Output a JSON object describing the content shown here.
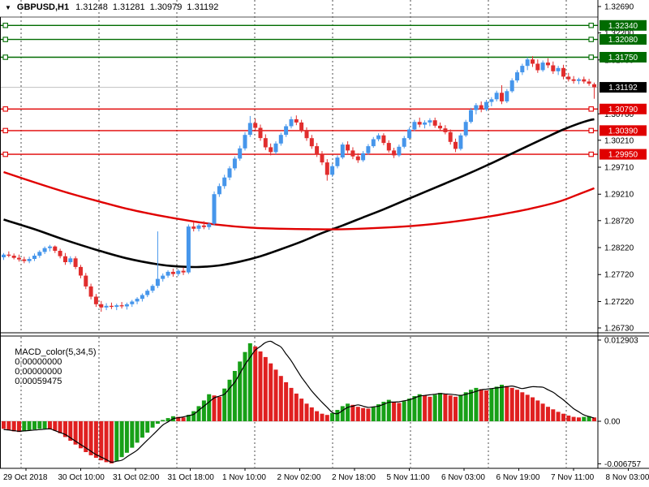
{
  "title": {
    "symbol": "GBPUSD,H1",
    "open": "1.31248",
    "high": "1.31281",
    "low": "1.30979",
    "close": "1.31192"
  },
  "colors": {
    "bull_candle": "#4696EB",
    "bear_candle": "#E12D2D",
    "ma_black": "#000000",
    "ma_red": "#E00000",
    "level_resistance": "#006B00",
    "level_support": "#E00000",
    "current_line": "#C8C8C8",
    "current_badge_bg": "#000000",
    "hist_up": "#17A017",
    "hist_down": "#E02020",
    "signal_line": "#000000",
    "grid": "#4d4d4d",
    "axis_text": "#000000"
  },
  "chart_data": {
    "type": "candlestick",
    "symbol": "GBPUSD",
    "timeframe": "H1",
    "x_labels": [
      "29 Oct 2018",
      "30 Oct 10:00",
      "31 Oct 02:00",
      "31 Oct 18:00",
      "1 Nov 10:00",
      "2 Nov 02:00",
      "2 Nov 18:00",
      "5 Nov 11:00",
      "6 Nov 03:00",
      "6 Nov 19:00",
      "7 Nov 11:00",
      "8 Nov 03:00"
    ],
    "y_axis": {
      "ticks": [
        "1.32690",
        "1.32200",
        "1.31700",
        "1.30700",
        "1.30210",
        "1.29710",
        "1.29210",
        "1.28720",
        "1.28220",
        "1.27720",
        "1.27220",
        "1.26730"
      ],
      "visible_range": [
        1.2664,
        1.32811
      ]
    },
    "levels": [
      {
        "price": 1.3234,
        "label": "1.32340",
        "type": "resistance"
      },
      {
        "price": 1.3208,
        "label": "1.32080",
        "type": "resistance"
      },
      {
        "price": 1.3175,
        "label": "1.31750",
        "type": "resistance"
      },
      {
        "price": 1.3079,
        "label": "1.30790",
        "type": "support"
      },
      {
        "price": 1.3039,
        "label": "1.30390",
        "type": "support"
      },
      {
        "price": 1.2995,
        "label": "1.29950",
        "type": "support"
      }
    ],
    "current_price": {
      "value": 1.31192,
      "label": "1.31192"
    },
    "candles": [
      [
        1.2804,
        1.2812,
        1.2799,
        1.2809
      ],
      [
        1.2809,
        1.2815,
        1.2804,
        1.2807
      ],
      [
        1.2807,
        1.2811,
        1.28,
        1.2803
      ],
      [
        1.2803,
        1.2809,
        1.2796,
        1.28
      ],
      [
        1.28,
        1.2805,
        1.2793,
        1.2797
      ],
      [
        1.2797,
        1.2805,
        1.2793,
        1.2801
      ],
      [
        1.2801,
        1.2811,
        1.2797,
        1.2807
      ],
      [
        1.2807,
        1.2817,
        1.2803,
        1.2814
      ],
      [
        1.2814,
        1.2824,
        1.281,
        1.2821
      ],
      [
        1.2821,
        1.2827,
        1.2815,
        1.2824
      ],
      [
        1.2824,
        1.2826,
        1.2812,
        1.2816
      ],
      [
        1.2816,
        1.282,
        1.2802,
        1.2806
      ],
      [
        1.2806,
        1.2812,
        1.279,
        1.2795
      ],
      [
        1.2795,
        1.2806,
        1.2791,
        1.2802
      ],
      [
        1.2802,
        1.2806,
        1.2782,
        1.2786
      ],
      [
        1.2786,
        1.279,
        1.2765,
        1.277
      ],
      [
        1.277,
        1.2775,
        1.2745,
        1.275
      ],
      [
        1.275,
        1.2755,
        1.2726,
        1.2731
      ],
      [
        1.2731,
        1.2736,
        1.2712,
        1.2717
      ],
      [
        1.2717,
        1.2723,
        1.2703,
        1.2711
      ],
      [
        1.2711,
        1.2719,
        1.2706,
        1.2714
      ],
      [
        1.2714,
        1.272,
        1.2708,
        1.2712
      ],
      [
        1.2712,
        1.2718,
        1.2706,
        1.2715
      ],
      [
        1.2715,
        1.2721,
        1.2709,
        1.2713
      ],
      [
        1.2713,
        1.272,
        1.2707,
        1.2717
      ],
      [
        1.2717,
        1.2725,
        1.2712,
        1.2722
      ],
      [
        1.2722,
        1.273,
        1.2717,
        1.2727
      ],
      [
        1.2727,
        1.2737,
        1.2722,
        1.2734
      ],
      [
        1.2734,
        1.2745,
        1.273,
        1.2742
      ],
      [
        1.2742,
        1.2754,
        1.2738,
        1.2751
      ],
      [
        1.2751,
        1.2852,
        1.2747,
        1.2764
      ],
      [
        1.2764,
        1.2774,
        1.2759,
        1.277
      ],
      [
        1.277,
        1.278,
        1.2766,
        1.2777
      ],
      [
        1.2777,
        1.2783,
        1.2768,
        1.2773
      ],
      [
        1.2773,
        1.2782,
        1.2769,
        1.2779
      ],
      [
        1.2779,
        1.2785,
        1.2771,
        1.2776
      ],
      [
        1.2776,
        1.2865,
        1.2773,
        1.2861
      ],
      [
        1.2861,
        1.287,
        1.2852,
        1.2857
      ],
      [
        1.2857,
        1.2866,
        1.2852,
        1.2863
      ],
      [
        1.2863,
        1.2871,
        1.2856,
        1.286
      ],
      [
        1.286,
        1.2869,
        1.2855,
        1.2866
      ],
      [
        1.2866,
        1.2926,
        1.2863,
        1.2921
      ],
      [
        1.2921,
        1.2941,
        1.2916,
        1.2936
      ],
      [
        1.2936,
        1.2957,
        1.2931,
        1.2952
      ],
      [
        1.2952,
        1.2973,
        1.2947,
        1.2969
      ],
      [
        1.2969,
        1.2991,
        1.2965,
        1.2987
      ],
      [
        1.2987,
        1.3011,
        1.2983,
        1.3006
      ],
      [
        1.3006,
        1.3036,
        1.3002,
        1.3031
      ],
      [
        1.3031,
        1.3066,
        1.3027,
        1.3053
      ],
      [
        1.3053,
        1.3061,
        1.3039,
        1.3044
      ],
      [
        1.3044,
        1.305,
        1.302,
        1.3025
      ],
      [
        1.3025,
        1.3032,
        1.3003,
        1.3008
      ],
      [
        1.3008,
        1.3015,
        1.2993,
        1.2999
      ],
      [
        1.2999,
        1.3019,
        1.2995,
        1.3015
      ],
      [
        1.3015,
        1.3035,
        1.3011,
        1.3031
      ],
      [
        1.3031,
        1.3051,
        1.3027,
        1.3047
      ],
      [
        1.3047,
        1.3065,
        1.3043,
        1.306
      ],
      [
        1.306,
        1.3067,
        1.3049,
        1.3054
      ],
      [
        1.3054,
        1.3059,
        1.3035,
        1.304
      ],
      [
        1.304,
        1.3045,
        1.302,
        1.3025
      ],
      [
        1.3025,
        1.3031,
        1.3005,
        1.301
      ],
      [
        1.301,
        1.3016,
        1.299,
        1.2995
      ],
      [
        1.2995,
        1.3001,
        1.2975,
        1.298
      ],
      [
        1.298,
        1.2986,
        1.2946,
        1.2957
      ],
      [
        1.2957,
        1.2977,
        1.2953,
        1.2973
      ],
      [
        1.2973,
        1.2993,
        1.2969,
        1.2989
      ],
      [
        1.2989,
        1.3017,
        1.2986,
        1.3013
      ],
      [
        1.3013,
        1.3019,
        1.2997,
        1.3002
      ],
      [
        1.3002,
        1.3008,
        1.2986,
        1.2991
      ],
      [
        1.2991,
        1.2997,
        1.2979,
        1.2984
      ],
      [
        1.2984,
        1.3001,
        1.2981,
        1.2997
      ],
      [
        1.2997,
        1.3014,
        1.2994,
        1.301
      ],
      [
        1.301,
        1.3027,
        1.3007,
        1.3023
      ],
      [
        1.3023,
        1.3034,
        1.3019,
        1.303
      ],
      [
        1.303,
        1.3034,
        1.3012,
        1.3016
      ],
      [
        1.3016,
        1.3021,
        1.2998,
        1.3002
      ],
      [
        1.3002,
        1.3007,
        1.2988,
        1.2993
      ],
      [
        1.2993,
        1.3013,
        1.299,
        1.3009
      ],
      [
        1.3009,
        1.3029,
        1.3006,
        1.3025
      ],
      [
        1.3025,
        1.3045,
        1.3022,
        1.3041
      ],
      [
        1.3041,
        1.3059,
        1.3038,
        1.3055
      ],
      [
        1.3055,
        1.3063,
        1.3045,
        1.305
      ],
      [
        1.305,
        1.3058,
        1.3043,
        1.3054
      ],
      [
        1.3054,
        1.3062,
        1.3047,
        1.3058
      ],
      [
        1.3058,
        1.3063,
        1.3044,
        1.3048
      ],
      [
        1.3048,
        1.3054,
        1.3039,
        1.3043
      ],
      [
        1.3043,
        1.3049,
        1.3032,
        1.3036
      ],
      [
        1.3036,
        1.3041,
        1.3013,
        1.3018
      ],
      [
        1.3018,
        1.3024,
        1.2999,
        1.3005
      ],
      [
        1.3005,
        1.3034,
        1.3002,
        1.303
      ],
      [
        1.303,
        1.3059,
        1.3027,
        1.3055
      ],
      [
        1.3055,
        1.3081,
        1.3052,
        1.3077
      ],
      [
        1.3077,
        1.309,
        1.3069,
        1.3086
      ],
      [
        1.3086,
        1.3093,
        1.3073,
        1.3078
      ],
      [
        1.3078,
        1.3096,
        1.3075,
        1.3092
      ],
      [
        1.3092,
        1.3101,
        1.3084,
        1.3097
      ],
      [
        1.3097,
        1.3113,
        1.3093,
        1.3109
      ],
      [
        1.3109,
        1.3123,
        1.3088,
        1.3093
      ],
      [
        1.3093,
        1.3116,
        1.309,
        1.3112
      ],
      [
        1.3112,
        1.3136,
        1.3109,
        1.3132
      ],
      [
        1.3132,
        1.3151,
        1.3128,
        1.3147
      ],
      [
        1.3147,
        1.3163,
        1.3142,
        1.3159
      ],
      [
        1.3159,
        1.3175,
        1.3151,
        1.3171
      ],
      [
        1.3171,
        1.3177,
        1.3157,
        1.3163
      ],
      [
        1.3163,
        1.3171,
        1.3146,
        1.3151
      ],
      [
        1.3151,
        1.3169,
        1.3148,
        1.3165
      ],
      [
        1.3165,
        1.3173,
        1.3155,
        1.316
      ],
      [
        1.316,
        1.3167,
        1.3144,
        1.3149
      ],
      [
        1.3149,
        1.3159,
        1.3142,
        1.3155
      ],
      [
        1.3155,
        1.3161,
        1.3134,
        1.3139
      ],
      [
        1.3139,
        1.3146,
        1.313,
        1.3134
      ],
      [
        1.3134,
        1.314,
        1.3126,
        1.3131
      ],
      [
        1.3131,
        1.3137,
        1.3125,
        1.3134
      ],
      [
        1.3134,
        1.3139,
        1.3126,
        1.313
      ],
      [
        1.313,
        1.3135,
        1.3122,
        1.3126
      ],
      [
        1.31248,
        1.31281,
        1.30979,
        1.31192
      ]
    ],
    "overlays": {
      "ma_black_points": [
        [
          0,
          1.2874
        ],
        [
          6,
          1.2856
        ],
        [
          12,
          1.2836
        ],
        [
          18,
          1.2818
        ],
        [
          24,
          1.2802
        ],
        [
          30,
          1.2791
        ],
        [
          34,
          1.2787
        ],
        [
          38,
          1.2786
        ],
        [
          42,
          1.2789
        ],
        [
          46,
          1.2796
        ],
        [
          50,
          1.2806
        ],
        [
          54,
          1.2819
        ],
        [
          58,
          1.2833
        ],
        [
          62,
          1.2849
        ],
        [
          66,
          1.2863
        ],
        [
          70,
          1.2878
        ],
        [
          74,
          1.2893
        ],
        [
          78,
          1.2909
        ],
        [
          82,
          1.2925
        ],
        [
          86,
          1.2941
        ],
        [
          90,
          1.2957
        ],
        [
          94,
          1.2974
        ],
        [
          98,
          1.2992
        ],
        [
          102,
          1.301
        ],
        [
          106,
          1.3028
        ],
        [
          109,
          1.3041
        ],
        [
          112,
          1.3052
        ],
        [
          114,
          1.3058
        ],
        [
          115,
          1.306
        ]
      ],
      "ma_red_points": [
        [
          0,
          1.2962
        ],
        [
          6,
          1.2943
        ],
        [
          12,
          1.2925
        ],
        [
          18,
          1.2909
        ],
        [
          24,
          1.2894
        ],
        [
          30,
          1.2882
        ],
        [
          36,
          1.2872
        ],
        [
          42,
          1.2864
        ],
        [
          48,
          1.2859
        ],
        [
          54,
          1.2857
        ],
        [
          60,
          1.2856
        ],
        [
          66,
          1.2856
        ],
        [
          72,
          1.2858
        ],
        [
          78,
          1.2861
        ],
        [
          84,
          1.2866
        ],
        [
          90,
          1.2873
        ],
        [
          96,
          1.2882
        ],
        [
          102,
          1.2893
        ],
        [
          108,
          1.2907
        ],
        [
          112,
          1.2921
        ],
        [
          115,
          1.2932
        ]
      ]
    },
    "indicator": {
      "type": "macd_histogram",
      "label": "MACD_color(5,34,5)",
      "values": [
        "0.00000000",
        "0.00000000",
        "0.00059475"
      ],
      "axis_ticks": [
        {
          "v": 0.012903,
          "label": "0.012903"
        },
        {
          "v": 0,
          "label": "0.00"
        },
        {
          "v": -0.006757,
          "label": "-0.006757"
        }
      ],
      "visible_range": [
        -0.007484,
        0.013545
      ],
      "histogram": [
        -0.0012,
        -0.0014,
        -0.0016,
        -0.0017,
        -0.0016,
        -0.0014,
        -0.0013,
        -0.0012,
        -0.0012,
        -0.0013,
        -0.0015,
        -0.0019,
        -0.0025,
        -0.0031,
        -0.0037,
        -0.0043,
        -0.0049,
        -0.0054,
        -0.0058,
        -0.0062,
        -0.0065,
        -0.0067,
        -0.0063,
        -0.0057,
        -0.005,
        -0.0042,
        -0.0034,
        -0.0026,
        -0.0018,
        -0.001,
        -0.0004,
        0.0002,
        0.0005,
        0.0008,
        0.0007,
        0.0006,
        0.001,
        0.0016,
        0.0024,
        0.0033,
        0.0043,
        0.0041,
        0.0039,
        0.0052,
        0.0066,
        0.008,
        0.0095,
        0.011,
        0.0124,
        0.0119,
        0.0111,
        0.0102,
        0.0092,
        0.0082,
        0.0072,
        0.0062,
        0.0053,
        0.0044,
        0.0036,
        0.0028,
        0.0022,
        0.0016,
        0.0012,
        0.001,
        0.0013,
        0.0018,
        0.0024,
        0.0028,
        0.0026,
        0.0023,
        0.0021,
        0.002,
        0.0023,
        0.0027,
        0.0031,
        0.0034,
        0.0031,
        0.0029,
        0.0032,
        0.0036,
        0.004,
        0.0043,
        0.0041,
        0.0039,
        0.0042,
        0.0045,
        0.0043,
        0.0041,
        0.0039,
        0.0042,
        0.0046,
        0.005,
        0.0053,
        0.0051,
        0.0049,
        0.0052,
        0.0055,
        0.0058,
        0.0056,
        0.0053,
        0.005,
        0.0046,
        0.0042,
        0.0038,
        0.0033,
        0.0028,
        0.0023,
        0.0019,
        0.0015,
        0.0012,
        0.0009,
        0.0007,
        0.0006,
        0.0007,
        0.0008,
        0.0006
      ],
      "signal_points": [
        [
          0,
          -0.0013
        ],
        [
          3,
          -0.0016
        ],
        [
          6,
          -0.0014
        ],
        [
          9,
          -0.0012
        ],
        [
          12,
          -0.0021
        ],
        [
          15,
          -0.0037
        ],
        [
          18,
          -0.0053
        ],
        [
          21,
          -0.0065
        ],
        [
          23,
          -0.0062
        ],
        [
          26,
          -0.0046
        ],
        [
          29,
          -0.0022
        ],
        [
          31,
          -0.0006
        ],
        [
          33,
          0.0004
        ],
        [
          35,
          0.0007
        ],
        [
          37,
          0.0011
        ],
        [
          39,
          0.0024
        ],
        [
          41,
          0.0037
        ],
        [
          43,
          0.0043
        ],
        [
          45,
          0.0062
        ],
        [
          47,
          0.009
        ],
        [
          49,
          0.0113
        ],
        [
          51,
          0.0125
        ],
        [
          52,
          0.0127
        ],
        [
          54,
          0.0118
        ],
        [
          56,
          0.0096
        ],
        [
          58,
          0.007
        ],
        [
          60,
          0.0048
        ],
        [
          62,
          0.003
        ],
        [
          64,
          0.0014
        ],
        [
          65,
          0.0012
        ],
        [
          67,
          0.0022
        ],
        [
          69,
          0.0026
        ],
        [
          71,
          0.0022
        ],
        [
          73,
          0.0024
        ],
        [
          75,
          0.003
        ],
        [
          77,
          0.0031
        ],
        [
          79,
          0.0034
        ],
        [
          81,
          0.004
        ],
        [
          83,
          0.0042
        ],
        [
          85,
          0.0044
        ],
        [
          87,
          0.0043
        ],
        [
          89,
          0.0041
        ],
        [
          91,
          0.0045
        ],
        [
          93,
          0.005
        ],
        [
          95,
          0.0052
        ],
        [
          97,
          0.0054
        ],
        [
          99,
          0.0056
        ],
        [
          101,
          0.0052
        ],
        [
          103,
          0.0055
        ],
        [
          105,
          0.0054
        ],
        [
          107,
          0.0046
        ],
        [
          109,
          0.0034
        ],
        [
          111,
          0.002
        ],
        [
          113,
          0.001
        ],
        [
          115,
          0.0005
        ]
      ]
    }
  }
}
